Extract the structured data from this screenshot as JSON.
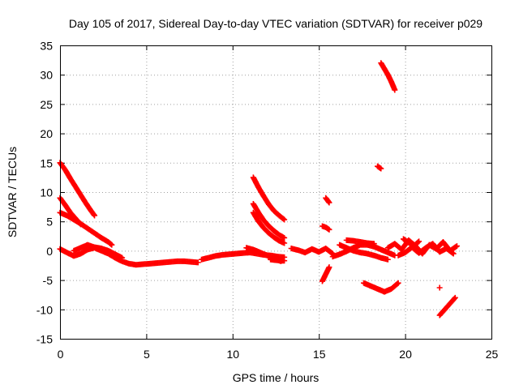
{
  "chart_data": {
    "type": "scatter",
    "title": "Day 105 of 2017, Sidereal Day-to-day VTEC variation (SDTVAR) for receiver p029",
    "xlabel": "GPS time / hours",
    "ylabel": "SDTVAR / TECUs",
    "xlim": [
      0,
      25
    ],
    "ylim": [
      -15,
      35
    ],
    "xticks": [
      "0",
      "5",
      "10",
      "15",
      "20",
      "25"
    ],
    "yticks": [
      "-15",
      "-10",
      "-5",
      "0",
      "5",
      "10",
      "15",
      "20",
      "25",
      "30",
      "35"
    ],
    "grid": true,
    "marker": "plus",
    "color": "#ff0000",
    "segments": [
      {
        "x": [
          0.0,
          0.3,
          0.6,
          0.9,
          1.2,
          1.5,
          1.8,
          2.0
        ],
        "y": [
          15.0,
          13.8,
          12.3,
          10.9,
          9.5,
          8.1,
          6.8,
          6.0
        ]
      },
      {
        "x": [
          0.0,
          0.4,
          0.8,
          1.2,
          1.6,
          2.0,
          2.4,
          2.8,
          3.0
        ],
        "y": [
          6.5,
          6.0,
          5.3,
          4.6,
          3.8,
          3.0,
          2.2,
          1.5,
          1.0
        ]
      },
      {
        "x": [
          0.0,
          0.3,
          0.6,
          0.9,
          1.2
        ],
        "y": [
          9.0,
          7.8,
          6.5,
          5.5,
          4.5
        ]
      },
      {
        "x": [
          0.0,
          0.4,
          0.8,
          1.2,
          1.6,
          2.0,
          2.4,
          2.8,
          3.2,
          3.6,
          4.0,
          4.4,
          4.8,
          5.2,
          5.6,
          6.0,
          6.4,
          6.8,
          7.2,
          7.6,
          8.0
        ],
        "y": [
          0.3,
          -0.3,
          -0.9,
          -0.5,
          0.2,
          0.5,
          0.0,
          -0.5,
          -1.2,
          -1.8,
          -2.2,
          -2.4,
          -2.3,
          -2.2,
          -2.1,
          -2.0,
          -1.9,
          -1.8,
          -1.8,
          -1.9,
          -2.0
        ]
      },
      {
        "x": [
          0.8,
          1.2,
          1.6,
          2.0,
          2.4,
          2.8,
          3.2,
          3.6
        ],
        "y": [
          0.0,
          0.5,
          1.0,
          0.6,
          0.4,
          0.0,
          -0.6,
          -1.2
        ]
      },
      {
        "x": [
          8.2,
          8.6,
          9.0,
          9.4,
          9.8,
          10.2,
          10.6,
          11.0,
          11.4,
          11.8,
          12.2,
          12.6,
          13.0
        ],
        "y": [
          -1.5,
          -1.2,
          -0.9,
          -0.7,
          -0.6,
          -0.5,
          -0.4,
          -0.3,
          -0.5,
          -0.7,
          -0.8,
          -1.0,
          -1.1
        ]
      },
      {
        "x": [
          10.8,
          11.2,
          11.6,
          12.0,
          12.4,
          12.8
        ],
        "y": [
          0.5,
          0.2,
          -0.3,
          -0.8,
          -1.3,
          -1.8
        ]
      },
      {
        "x": [
          11.2,
          11.5,
          11.8,
          12.1,
          12.4,
          12.7,
          13.0
        ],
        "y": [
          12.5,
          10.8,
          9.3,
          7.9,
          6.8,
          6.0,
          5.3
        ]
      },
      {
        "x": [
          11.2,
          11.5,
          11.8,
          12.1,
          12.4,
          12.7,
          13.0
        ],
        "y": [
          8.0,
          6.5,
          5.2,
          4.2,
          3.4,
          2.7,
          2.2
        ]
      },
      {
        "x": [
          11.2,
          11.5,
          11.8,
          12.1,
          12.4,
          12.7,
          13.0
        ],
        "y": [
          6.5,
          5.0,
          3.9,
          3.0,
          2.3,
          1.7,
          1.3
        ]
      },
      {
        "x": [
          12.2,
          12.5,
          12.8,
          13.0
        ],
        "y": [
          -1.5,
          -1.6,
          -1.7,
          -1.7
        ]
      },
      {
        "x": [
          13.4,
          13.8,
          14.2,
          14.6,
          15.0,
          15.4,
          15.8
        ],
        "y": [
          0.4,
          0.1,
          -0.3,
          0.3,
          -0.2,
          0.4,
          -0.5
        ]
      },
      {
        "x": [
          15.2,
          15.4,
          15.6
        ],
        "y": [
          -5.2,
          -4.0,
          -2.8
        ]
      },
      {
        "x": [
          15.2,
          15.4,
          15.6
        ],
        "y": [
          4.2,
          4.0,
          3.6
        ]
      },
      {
        "x": [
          15.4,
          15.5,
          15.6
        ],
        "y": [
          9.0,
          8.6,
          8.2
        ]
      },
      {
        "x": [
          15.8,
          16.2,
          16.6,
          17.0,
          17.4,
          17.8,
          18.2,
          18.6,
          19.0,
          19.4
        ],
        "y": [
          -1.0,
          -0.6,
          -0.1,
          0.5,
          1.0,
          1.0,
          0.7,
          0.2,
          -0.3,
          -0.8
        ]
      },
      {
        "x": [
          16.2,
          16.6,
          17.0,
          17.4,
          17.8,
          18.2,
          18.6,
          19.0
        ],
        "y": [
          1.0,
          0.5,
          0.0,
          -0.3,
          -0.5,
          -0.8,
          -1.2,
          -1.5
        ]
      },
      {
        "x": [
          16.6,
          17.0,
          17.4,
          17.8,
          18.2
        ],
        "y": [
          1.8,
          1.7,
          1.5,
          1.3,
          1.2
        ]
      },
      {
        "x": [
          17.6,
          18.0,
          18.4,
          18.8,
          19.2,
          19.6
        ],
        "y": [
          -5.5,
          -6.0,
          -6.5,
          -7.0,
          -6.5,
          -5.5
        ]
      },
      {
        "x": [
          18.4,
          18.5,
          18.6
        ],
        "y": [
          14.4,
          14.2,
          14.0
        ]
      },
      {
        "x": [
          18.6,
          18.8,
          19.0,
          19.2,
          19.4
        ],
        "y": [
          32.0,
          31.0,
          30.0,
          28.8,
          27.4
        ]
      },
      {
        "x": [
          19.0,
          19.4,
          19.8,
          20.2,
          20.6,
          21.0,
          21.4,
          21.8,
          22.2,
          22.6,
          23.0
        ],
        "y": [
          0.5,
          1.2,
          0.2,
          1.8,
          0.8,
          -0.5,
          1.0,
          0.3,
          1.5,
          0.0,
          0.8
        ]
      },
      {
        "x": [
          19.6,
          20.0,
          20.4,
          20.8,
          21.2,
          21.6,
          22.0,
          22.4,
          22.8
        ],
        "y": [
          -0.8,
          -0.3,
          0.6,
          -0.4,
          0.5,
          1.2,
          -0.2,
          0.4,
          -0.5
        ]
      },
      {
        "x": [
          19.9,
          20.2,
          20.5,
          20.8
        ],
        "y": [
          2.0,
          1.4,
          0.8,
          1.6
        ]
      },
      {
        "x": [
          22.0
        ],
        "y": [
          -6.3
        ]
      },
      {
        "x": [
          22.0,
          22.3,
          22.6,
          22.9
        ],
        "y": [
          -11.0,
          -10.0,
          -9.0,
          -8.0
        ]
      }
    ]
  }
}
